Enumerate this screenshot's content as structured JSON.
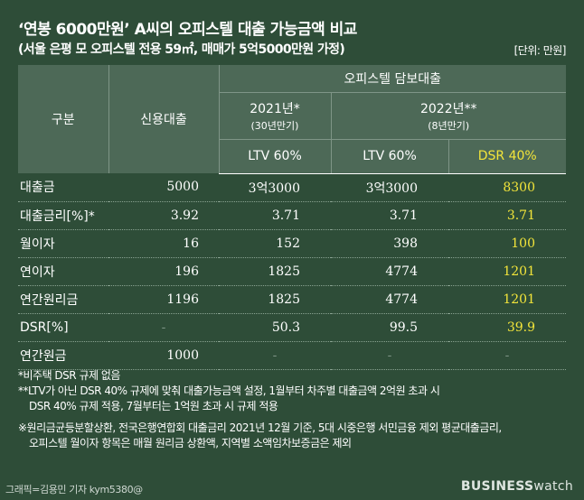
{
  "title": "‘연봉 6000만원’ A씨의 오피스텔 대출 가능금액 비교",
  "subtitle": "(서울 은평 모 오피스텔 전용 59㎡, 매매가 5억5000만원 가정)",
  "unit": "[단위: 만원]",
  "header": {
    "col_label": "구분",
    "credit_loan": "신용대출",
    "group": "오피스텔 담보대출",
    "y2021": "2021년*",
    "y2021_sub": "(30년만기)",
    "y2022": "2022년**",
    "y2022_sub": "(8년만기)",
    "ltv2021": "LTV 60%",
    "ltv2022": "LTV 60%",
    "dsr2022": "DSR 40%"
  },
  "rows": [
    {
      "label": "대출금",
      "credit": "5000",
      "a": "3억3000",
      "b": "3억3000",
      "c": "8300"
    },
    {
      "label": "대출금리[%]*",
      "credit": "3.92",
      "a": "3.71",
      "b": "3.71",
      "c": "3.71"
    },
    {
      "label": "월이자",
      "credit": "16",
      "a": "152",
      "b": "398",
      "c": "100"
    },
    {
      "label": "연이자",
      "credit": "196",
      "a": "1825",
      "b": "4774",
      "c": "1201"
    },
    {
      "label": "연간원리금",
      "credit": "1196",
      "a": "1825",
      "b": "4774",
      "c": "1201"
    },
    {
      "label": "DSR[%]",
      "credit": "-",
      "a": "50.3",
      "b": "99.5",
      "c": "39.9"
    },
    {
      "label": "연간원금",
      "credit": "1000",
      "a": "-",
      "b": "-",
      "c": "-"
    }
  ],
  "notes": {
    "n1": "*비주택 DSR 규제 없음",
    "n2a": "**LTV가 아닌 DSR 40% 규제에 맞춰 대출가능금액 설정, 1월부터 차주별 대출금액 2억원 초과 시",
    "n2b": "DSR 40% 규제 적용, 7월부터는 1억원 초과 시 규제 적용",
    "n3a": "※원리금균등분할상환, 전국은행연합회 대출금리 2021년 12월 기준, 5대 시중은행 서민금융 제외 평균대출금리,",
    "n3b": "오피스텔 월이자 항목은 매월 원리금 상환액, 지역별 소액임차보증금은 제외"
  },
  "footer": {
    "credit": "그래픽=김용민 기자 kym5380@",
    "logo_bold": "BUSINESS",
    "logo_light": "watch"
  },
  "colors": {
    "background": "#2e4d38",
    "header_bg": "#4d6957",
    "highlight": "#f3e53a"
  }
}
